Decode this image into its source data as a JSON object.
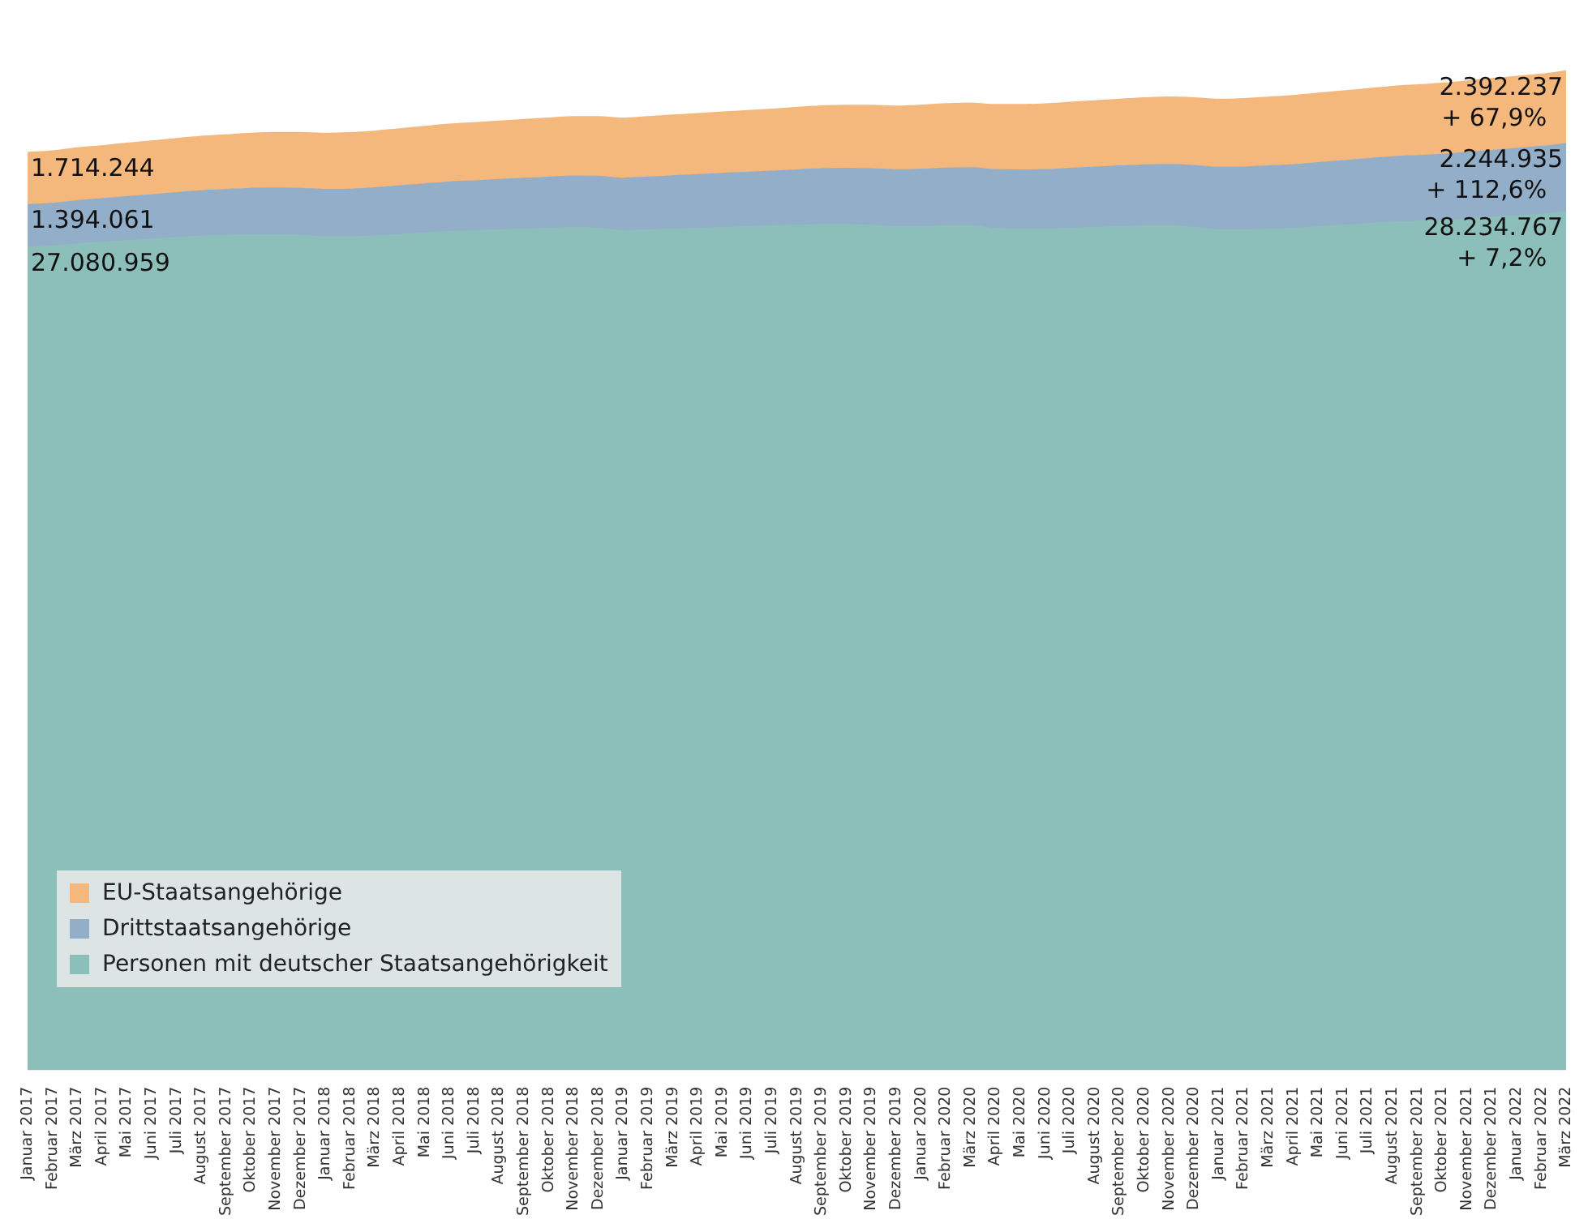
{
  "chart_data": {
    "type": "area",
    "stacked": true,
    "legend": "bottom left",
    "data_labels": false,
    "categories": [
      "Januar 2017",
      "Februar 2017",
      "März 2017",
      "April 2017",
      "Mai 2017",
      "Juni 2017",
      "Juli 2017",
      "August 2017",
      "September 2017",
      "Oktober 2017",
      "November 2017",
      "Dezember 2017",
      "Januar 2018",
      "Februar 2018",
      "März 2018",
      "April 2018",
      "Mai 2018",
      "Juni 2018",
      "Juli 2018",
      "August 2018",
      "September 2018",
      "Oktober 2018",
      "November 2018",
      "Dezember 2018",
      "Januar 2019",
      "Februar 2019",
      "März 2019",
      "April 2019",
      "Mai 2019",
      "Juni 2019",
      "Juli 2019",
      "August 2019",
      "September 2019",
      "Oktober 2019",
      "November 2019",
      "Dezember 2019",
      "Januar 2020",
      "Februar 2020",
      "März 2020",
      "April 2020",
      "Mai 2020",
      "Juni 2020",
      "Juli 2020",
      "August 2020",
      "September 2020",
      "Oktober 2020",
      "November 2020",
      "Dezember 2020",
      "Januar 2021",
      "Februar 2021",
      "März 2021",
      "April 2021",
      "Mai 2021",
      "Juni 2021",
      "Juli 2021",
      "August 2021",
      "September 2021",
      "Oktober 2021",
      "November 2021",
      "Dezember 2021",
      "Januar 2022",
      "Februar 2022",
      "März 2022"
    ],
    "series": [
      {
        "name": "Personen mit deutscher Staatsangehörigkeit",
        "color": "#8dbfba",
        "values": [
          27080959,
          27106000,
          27183000,
          27234000,
          27285000,
          27336000,
          27387000,
          27439000,
          27464000,
          27490000,
          27490000,
          27464000,
          27413000,
          27413000,
          27439000,
          27490000,
          27541000,
          27592000,
          27617000,
          27643000,
          27669000,
          27694000,
          27720000,
          27694000,
          27617000,
          27643000,
          27669000,
          27694000,
          27720000,
          27745000,
          27771000,
          27796000,
          27822000,
          27822000,
          27796000,
          27745000,
          27745000,
          27771000,
          27771000,
          27694000,
          27669000,
          27669000,
          27694000,
          27720000,
          27745000,
          27771000,
          27771000,
          27720000,
          27643000,
          27643000,
          27669000,
          27694000,
          27745000,
          27796000,
          27847000,
          27898000,
          27924000,
          27950000,
          28001000,
          28052000,
          28103000,
          28154000,
          28234767
        ],
        "value_labels": [
          "27.080.959",
          null,
          null,
          null,
          null,
          null,
          null,
          null,
          null,
          null,
          null,
          null,
          null,
          null,
          null,
          null,
          null,
          null,
          null,
          null,
          null,
          null,
          null,
          null,
          null,
          null,
          null,
          null,
          null,
          null,
          null,
          null,
          null,
          null,
          null,
          null,
          null,
          null,
          null,
          null,
          null,
          null,
          null,
          null,
          null,
          null,
          null,
          null,
          null,
          null,
          null,
          null,
          null,
          null,
          null,
          null,
          null,
          null,
          null,
          null,
          null,
          null,
          "28.234.767"
        ]
      },
      {
        "name": "Drittstaatsangehörige",
        "color": "#93aec9",
        "values": [
          1394061,
          1410000,
          1420000,
          1430000,
          1450000,
          1460000,
          1480000,
          1490000,
          1505000,
          1520000,
          1530000,
          1545000,
          1560000,
          1570000,
          1585000,
          1600000,
          1615000,
          1625000,
          1640000,
          1655000,
          1670000,
          1680000,
          1695000,
          1710000,
          1725000,
          1735000,
          1750000,
          1765000,
          1780000,
          1790000,
          1805000,
          1820000,
          1835000,
          1845000,
          1860000,
          1875000,
          1890000,
          1900000,
          1915000,
          1930000,
          1945000,
          1955000,
          1970000,
          1985000,
          2000000,
          2010000,
          2025000,
          2040000,
          2055000,
          2065000,
          2080000,
          2095000,
          2110000,
          2120000,
          2135000,
          2150000,
          2165000,
          2175000,
          2190000,
          2205000,
          2220000,
          2230000,
          2244935
        ],
        "value_labels": [
          "1.394.061",
          null,
          null,
          null,
          null,
          null,
          null,
          null,
          null,
          null,
          null,
          null,
          null,
          null,
          null,
          null,
          null,
          null,
          null,
          null,
          null,
          null,
          null,
          null,
          null,
          null,
          null,
          null,
          null,
          null,
          null,
          null,
          null,
          null,
          null,
          null,
          null,
          null,
          null,
          null,
          null,
          null,
          null,
          null,
          null,
          null,
          null,
          null,
          null,
          null,
          null,
          null,
          null,
          null,
          null,
          null,
          null,
          null,
          null,
          null,
          null,
          null,
          "2.244.935"
        ]
      },
      {
        "name": "EU-Staatsangehörige",
        "color": "#f4b77c",
        "values": [
          1714244,
          1725000,
          1735000,
          1745000,
          1760000,
          1770000,
          1780000,
          1790000,
          1800000,
          1810000,
          1825000,
          1835000,
          1845000,
          1855000,
          1865000,
          1880000,
          1890000,
          1900000,
          1910000,
          1920000,
          1935000,
          1945000,
          1955000,
          1965000,
          1975000,
          1990000,
          2000000,
          2010000,
          2020000,
          2030000,
          2040000,
          2055000,
          2065000,
          2075000,
          2085000,
          2095000,
          2110000,
          2120000,
          2130000,
          2140000,
          2150000,
          2165000,
          2175000,
          2185000,
          2195000,
          2205000,
          2220000,
          2230000,
          2240000,
          2250000,
          2260000,
          2270000,
          2285000,
          2295000,
          2305000,
          2315000,
          2325000,
          2340000,
          2350000,
          2360000,
          2370000,
          2380000,
          2392237
        ],
        "value_labels": [
          "1.714.244",
          null,
          null,
          null,
          null,
          null,
          null,
          null,
          null,
          null,
          null,
          null,
          null,
          null,
          null,
          null,
          null,
          null,
          null,
          null,
          null,
          null,
          null,
          null,
          null,
          null,
          null,
          null,
          null,
          null,
          null,
          null,
          null,
          null,
          null,
          null,
          null,
          null,
          null,
          null,
          null,
          null,
          null,
          null,
          null,
          null,
          null,
          null,
          null,
          null,
          null,
          null,
          null,
          null,
          null,
          null,
          null,
          null,
          null,
          null,
          null,
          null,
          "2.392.237"
        ]
      }
    ],
    "annotations": [
      {
        "text": "+ 7,2%",
        "x": "März 2022",
        "y": 28234767
      },
      {
        "text": "+ 112,6%",
        "x": "März 2022",
        "y": 30479702
      },
      {
        "text": "+ 67,9%",
        "x": "März 2022",
        "y": 32871939
      }
    ]
  }
}
